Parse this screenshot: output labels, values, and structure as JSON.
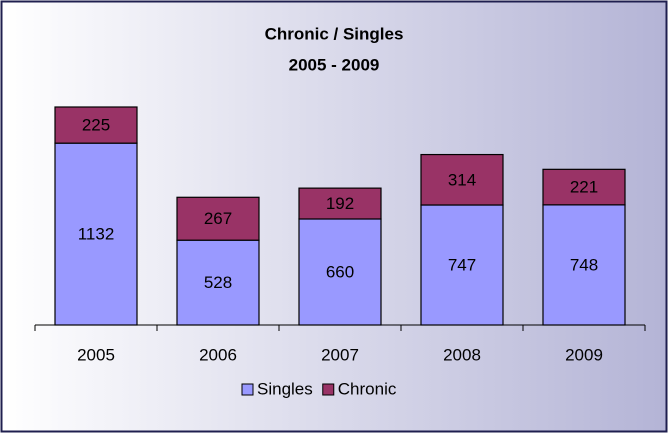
{
  "chart_data": {
    "type": "stacked-bar",
    "title": "Chronic / Singles",
    "subtitle": "2005 - 2009",
    "categories": [
      "2005",
      "2006",
      "2007",
      "2008",
      "2009"
    ],
    "series": [
      {
        "name": "Singles",
        "color": "#9999ff",
        "values": [
          1132,
          528,
          660,
          747,
          748
        ]
      },
      {
        "name": "Chronic",
        "color": "#993366",
        "values": [
          225,
          267,
          192,
          314,
          221
        ]
      }
    ],
    "legend": "bottom"
  }
}
